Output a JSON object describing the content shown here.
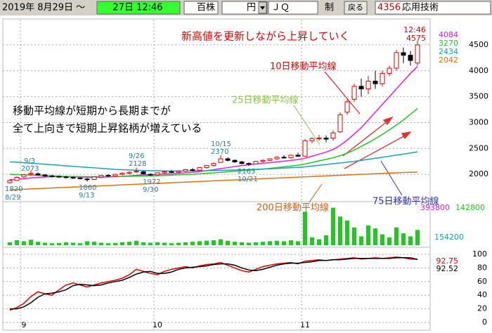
{
  "toolbar": {
    "date_range": "2019年 8月29日 ～",
    "time_box": "27日 12:46",
    "unit": "百株",
    "currency": "円",
    "market": "ＪＱ",
    "rule": "制",
    "back_button": "戻る",
    "code": "4356",
    "company": "応用技術"
  },
  "chart_data": [
    {
      "type": "candlestick",
      "title": "新高値を更新しながら上昇していく",
      "annotations": [
        "移動平均線が短期から長期までが",
        "全て上向きで短期上昇銘柄が増えている"
      ],
      "categories": [
        null,
        null,
        "9",
        null,
        null,
        null,
        null,
        null,
        null,
        null,
        null,
        null,
        null,
        null,
        null,
        null,
        null,
        null,
        null,
        null,
        null,
        "10",
        null,
        null,
        null,
        null,
        null,
        null,
        null,
        null,
        null,
        null,
        null,
        null,
        null,
        null,
        null,
        null,
        null,
        null,
        null,
        null,
        "11",
        null,
        null,
        null,
        null,
        null,
        null,
        null,
        null,
        null,
        null,
        null,
        null,
        null,
        null,
        null,
        null
      ],
      "open": [
        1840,
        1880,
        1950,
        2000,
        2010,
        1990,
        1970,
        1960,
        1950,
        1940,
        1930,
        1910,
        1900,
        1950,
        1980,
        1970,
        2000,
        2020,
        2050,
        2050,
        2000,
        1990,
        2030,
        2050,
        2040,
        2060,
        2090,
        2080,
        2130,
        2170,
        2230,
        2300,
        2270,
        2240,
        2210,
        2200,
        2250,
        2270,
        2300,
        2330,
        2320,
        2370,
        2350,
        2650,
        2690,
        2700,
        2700,
        2820,
        3200,
        3450,
        3700,
        3650,
        3800,
        3750,
        3950,
        4050,
        4350,
        4300,
        4150
      ],
      "high": [
        1900,
        1960,
        2010,
        2073,
        2040,
        2000,
        1990,
        1980,
        1970,
        1960,
        1950,
        1930,
        1960,
        1990,
        2000,
        2010,
        2040,
        2060,
        2128,
        2070,
        2020,
        2040,
        2060,
        2080,
        2070,
        2100,
        2120,
        2140,
        2180,
        2230,
        2370,
        2330,
        2290,
        2260,
        2230,
        2260,
        2290,
        2310,
        2350,
        2370,
        2380,
        2420,
        2680,
        2720,
        2760,
        2750,
        2850,
        3200,
        3450,
        3750,
        3850,
        3900,
        4000,
        4000,
        4100,
        4400,
        4450,
        4380,
        4575
      ],
      "low": [
        1820,
        1870,
        1930,
        1980,
        1970,
        1950,
        1940,
        1930,
        1920,
        1910,
        1900,
        1860,
        1890,
        1930,
        1950,
        1960,
        1980,
        2000,
        2030,
        2000,
        1972,
        1980,
        2010,
        2030,
        2020,
        2040,
        2060,
        2070,
        2110,
        2150,
        2220,
        2250,
        2220,
        2190,
        2163,
        2190,
        2230,
        2250,
        2280,
        2300,
        2310,
        2340,
        2340,
        2600,
        2650,
        2620,
        2650,
        2800,
        3150,
        3400,
        3500,
        3550,
        3650,
        3700,
        3900,
        4000,
        4150,
        4100,
        4100
      ],
      "close": [
        1880,
        1940,
        1990,
        2020,
        1990,
        1970,
        1960,
        1950,
        1940,
        1930,
        1920,
        1900,
        1950,
        1980,
        1970,
        2000,
        2020,
        2040,
        2060,
        2010,
        1990,
        2030,
        2050,
        2040,
        2060,
        2090,
        2080,
        2130,
        2170,
        2210,
        2300,
        2270,
        2240,
        2210,
        2200,
        2250,
        2270,
        2300,
        2330,
        2320,
        2370,
        2350,
        2650,
        2690,
        2700,
        2680,
        2800,
        3150,
        3400,
        3700,
        3650,
        3800,
        3750,
        3950,
        4050,
        4350,
        4300,
        4200,
        4500
      ],
      "up_color": "#e00000",
      "down_color": "#000000",
      "series": [
        {
          "name": "10日移動平均線",
          "color": "#e21ee2",
          "values": [
            1895,
            1905,
            1915,
            1930,
            1940,
            1950,
            1955,
            1955,
            1955,
            1955,
            1950,
            1945,
            1945,
            1945,
            1950,
            1955,
            1960,
            1970,
            1980,
            1990,
            1995,
            2000,
            2005,
            2010,
            2020,
            2030,
            2040,
            2055,
            2070,
            2090,
            2110,
            2130,
            2150,
            2170,
            2185,
            2200,
            2215,
            2225,
            2240,
            2255,
            2270,
            2285,
            2310,
            2350,
            2390,
            2430,
            2480,
            2560,
            2660,
            2780,
            2900,
            3050,
            3200,
            3350,
            3500,
            3650,
            3800,
            3950,
            4084
          ]
        },
        {
          "name": "25日移動平均線",
          "color": "#22c822",
          "values": [
            2000,
            1995,
            1990,
            1985,
            1980,
            1975,
            1970,
            1965,
            1960,
            1958,
            1956,
            1955,
            1955,
            1955,
            1956,
            1958,
            1960,
            1962,
            1965,
            1968,
            1970,
            1975,
            1980,
            1985,
            1990,
            1995,
            2000,
            2010,
            2020,
            2030,
            2040,
            2050,
            2060,
            2070,
            2080,
            2090,
            2100,
            2115,
            2130,
            2145,
            2160,
            2175,
            2200,
            2230,
            2260,
            2290,
            2320,
            2360,
            2410,
            2470,
            2540,
            2610,
            2690,
            2770,
            2860,
            2950,
            3050,
            3160,
            3270
          ]
        },
        {
          "name": "75日移動平均線",
          "color": "#1ea0b4",
          "values": [
            2240,
            2235,
            2225,
            2215,
            2205,
            2195,
            2185,
            2175,
            2165,
            2155,
            2145,
            2135,
            2125,
            2115,
            2105,
            2095,
            2090,
            2085,
            2080,
            2075,
            2070,
            2068,
            2066,
            2065,
            2064,
            2065,
            2066,
            2068,
            2070,
            2073,
            2076,
            2080,
            2084,
            2088,
            2092,
            2097,
            2102,
            2108,
            2114,
            2120,
            2127,
            2134,
            2145,
            2160,
            2175,
            2190,
            2205,
            2220,
            2235,
            2250,
            2270,
            2290,
            2310,
            2330,
            2350,
            2370,
            2390,
            2412,
            2434
          ]
        },
        {
          "name": "200日移動平均線",
          "color": "#e07010",
          "values": [
            1700,
            1706,
            1712,
            1718,
            1724,
            1730,
            1736,
            1742,
            1748,
            1754,
            1760,
            1766,
            1772,
            1778,
            1784,
            1790,
            1796,
            1802,
            1808,
            1814,
            1820,
            1826,
            1832,
            1838,
            1844,
            1850,
            1856,
            1862,
            1868,
            1874,
            1880,
            1886,
            1892,
            1898,
            1904,
            1910,
            1916,
            1922,
            1928,
            1934,
            1940,
            1946,
            1952,
            1958,
            1964,
            1970,
            1976,
            1982,
            1988,
            1994,
            2000,
            2006,
            2012,
            2018,
            2024,
            2030,
            2036,
            2039,
            2042
          ]
        }
      ],
      "notes": [
        "9/3",
        "8/29",
        "9/13",
        "9/26",
        "9/30",
        "10/15",
        "10/21"
      ],
      "last_time": "12:46",
      "ylim": [
        1500,
        4960
      ],
      "yticks": [
        2000,
        2500,
        3000,
        3500,
        4000,
        4500
      ],
      "grid": true
    },
    {
      "type": "bar",
      "color": "#22c822",
      "values": [
        30000,
        50000,
        40000,
        55000,
        35000,
        25000,
        20000,
        22000,
        30000,
        25000,
        20000,
        40000,
        35000,
        25000,
        20000,
        22000,
        30000,
        35000,
        45000,
        30000,
        25000,
        30000,
        25000,
        20000,
        25000,
        30000,
        35000,
        40000,
        45000,
        50000,
        60000,
        45000,
        35000,
        30000,
        25000,
        30000,
        35000,
        40000,
        45000,
        40000,
        50000,
        40000,
        340000,
        80000,
        60000,
        100000,
        380000,
        290000,
        250000,
        180000,
        90000,
        200000,
        170000,
        110000,
        80000,
        180000,
        120000,
        90000,
        154200
      ],
      "legend_values": [
        "393800",
        "142800",
        "154200"
      ],
      "ylim": [
        0,
        420000
      ]
    },
    {
      "type": "line",
      "series": [
        {
          "color": "#e00000",
          "values": [
            18,
            22,
            28,
            38,
            45,
            42,
            40,
            48,
            55,
            58,
            55,
            52,
            55,
            58,
            60,
            62,
            65,
            70,
            78,
            75,
            72,
            70,
            75,
            78,
            80,
            82,
            80,
            83,
            85,
            86,
            88,
            84,
            80,
            76,
            74,
            78,
            82,
            84,
            86,
            87,
            88,
            86,
            90,
            91,
            92,
            91,
            92,
            93,
            94,
            95,
            93,
            94,
            95,
            94,
            95,
            96,
            95,
            93,
            92.75
          ]
        },
        {
          "color": "#000000",
          "values": [
            20,
            20,
            23,
            29,
            37,
            42,
            43,
            45,
            48,
            54,
            56,
            55,
            54,
            55,
            58,
            60,
            62,
            66,
            71,
            74,
            75,
            72,
            72,
            74,
            78,
            80,
            81,
            82,
            83,
            85,
            86,
            86,
            84,
            80,
            77,
            76,
            78,
            81,
            84,
            86,
            87,
            87,
            88,
            89,
            91,
            91,
            92,
            92,
            93,
            94,
            94,
            94,
            94,
            94,
            94,
            95,
            95,
            95,
            92.52
          ]
        }
      ],
      "ylim": [
        0,
        100
      ],
      "yticks": [
        0,
        20,
        40,
        60,
        80,
        100
      ],
      "grid": true
    }
  ]
}
